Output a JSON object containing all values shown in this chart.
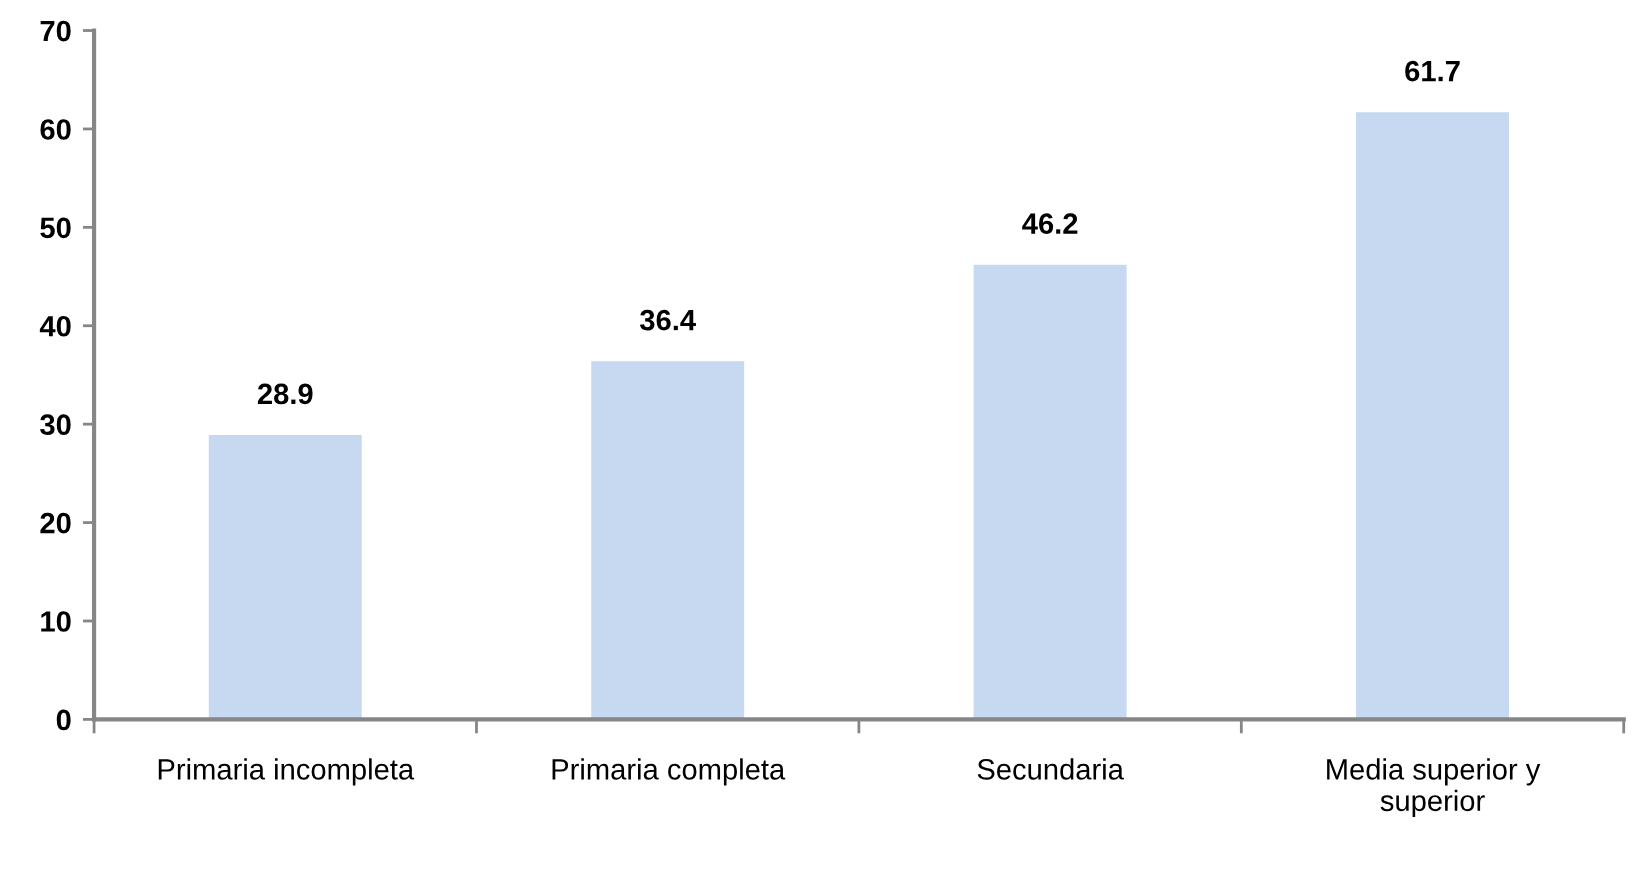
{
  "chart_data": {
    "type": "bar",
    "categories": [
      "Primaria incompleta",
      "Primaria completa",
      "Secundaria",
      "Media superior y\nsuperior"
    ],
    "values": [
      28.9,
      36.4,
      46.2,
      61.7
    ],
    "color": "#c6d9f1",
    "ylim": [
      0,
      70
    ],
    "yticks": [
      0,
      10,
      20,
      30,
      40,
      50,
      60,
      70
    ],
    "data_labels": true,
    "grid": false,
    "legend": false
  }
}
